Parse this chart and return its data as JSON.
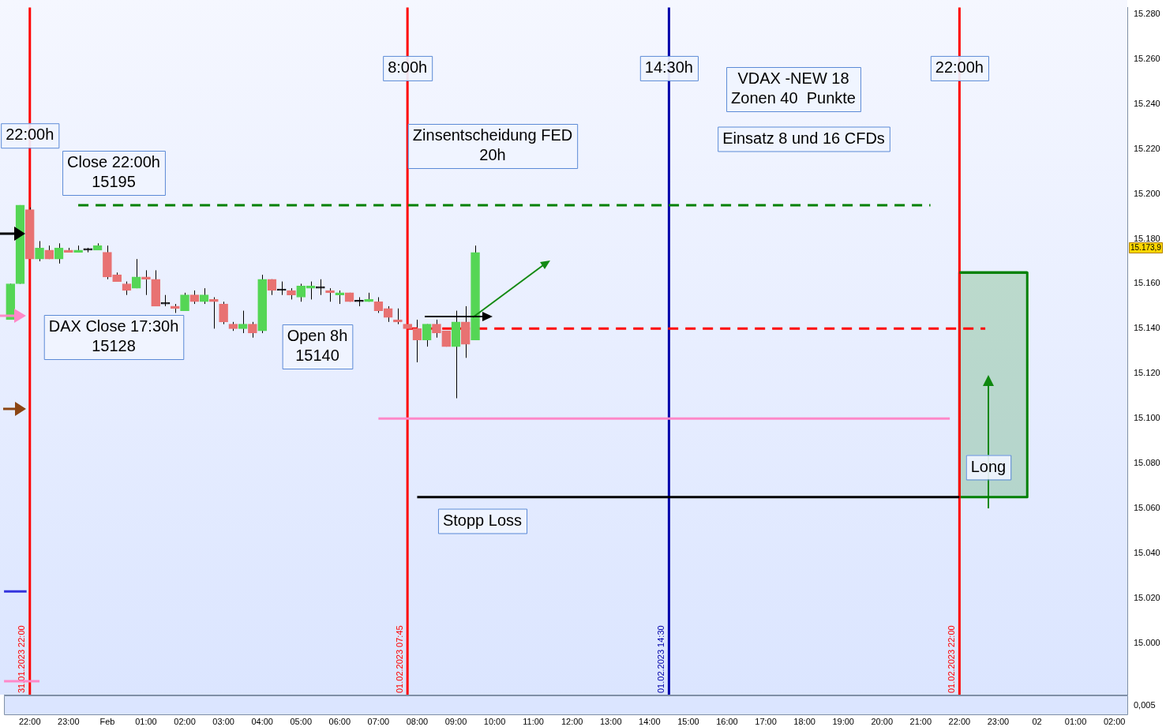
{
  "chart_data": {
    "type": "candlestick",
    "x": [
      "2023-01-31T21:30",
      "2023-01-31T21:45",
      "2023-01-31T22:00",
      "2023-01-31T22:15",
      "2023-01-31T22:30",
      "2023-01-31T22:45",
      "2023-01-31T23:00",
      "2023-01-31T23:15",
      "2023-01-31T23:30",
      "2023-01-31T23:45",
      "2023-02-01T00:00",
      "2023-02-01T00:15",
      "2023-02-01T00:30",
      "2023-02-01T00:45",
      "2023-02-01T01:00",
      "2023-02-01T01:15",
      "2023-02-01T01:30",
      "2023-02-01T01:45",
      "2023-02-01T02:00",
      "2023-02-01T02:15",
      "2023-02-01T02:30",
      "2023-02-01T02:45",
      "2023-02-01T03:00",
      "2023-02-01T03:15",
      "2023-02-01T03:30",
      "2023-02-01T03:45",
      "2023-02-01T04:00",
      "2023-02-01T04:15",
      "2023-02-01T04:30",
      "2023-02-01T04:45",
      "2023-02-01T05:00",
      "2023-02-01T05:15",
      "2023-02-01T05:30",
      "2023-02-01T05:45",
      "2023-02-01T06:00",
      "2023-02-01T06:15",
      "2023-02-01T06:30",
      "2023-02-01T06:45",
      "2023-02-01T07:00",
      "2023-02-01T07:15",
      "2023-02-01T07:30",
      "2023-02-01T07:45",
      "2023-02-01T08:00",
      "2023-02-01T08:15",
      "2023-02-01T08:30",
      "2023-02-01T08:45",
      "2023-02-01T09:00",
      "2023-02-01T09:15",
      "2023-02-01T09:30"
    ],
    "ohlc": [
      [
        15144,
        15160,
        15144,
        15160
      ],
      [
        15160,
        15195,
        15160,
        15195
      ],
      [
        15193,
        15194,
        15171,
        15171
      ],
      [
        15171,
        15179,
        15170,
        15176
      ],
      [
        15175,
        15177,
        15171,
        15171
      ],
      [
        15171,
        15178,
        15169,
        15176
      ],
      [
        15175,
        15176,
        15174,
        15174
      ],
      [
        15174,
        15177,
        15174,
        15175
      ],
      [
        15175,
        15176,
        15174,
        15175
      ],
      [
        15175,
        15178,
        15175,
        15177
      ],
      [
        15174,
        15177,
        15162,
        15163
      ],
      [
        15164,
        15165,
        15161,
        15161
      ],
      [
        15160,
        15161,
        15155,
        15157
      ],
      [
        15158,
        15171,
        15158,
        15163
      ],
      [
        15163,
        15166,
        15155,
        15162
      ],
      [
        15162,
        15166,
        15150,
        15150
      ],
      [
        15151,
        15155,
        15150,
        15151
      ],
      [
        15150,
        15151,
        15147,
        15149
      ],
      [
        15148,
        15156,
        15148,
        15155
      ],
      [
        15155,
        15157,
        15151,
        15152
      ],
      [
        15152,
        15158,
        15151,
        15155
      ],
      [
        15153,
        15154,
        15140,
        15152
      ],
      [
        15151,
        15152,
        15142,
        15143
      ],
      [
        15142,
        15143,
        15139,
        15140
      ],
      [
        15140,
        15148,
        15138,
        15142
      ],
      [
        15142,
        15143,
        15136,
        15138
      ],
      [
        15139,
        15164,
        15138,
        15162
      ],
      [
        15162,
        15162,
        15155,
        15157
      ],
      [
        15157,
        15161,
        15155,
        15157
      ],
      [
        15157,
        15158,
        15153,
        15155
      ],
      [
        15154,
        15160,
        15152,
        15159
      ],
      [
        15158,
        15161,
        15153,
        15159
      ],
      [
        15158,
        15162,
        15155,
        15158
      ],
      [
        15157,
        15158,
        15152,
        15156
      ],
      [
        15155,
        15157,
        15151,
        15156
      ],
      [
        15156,
        15156,
        15152,
        15152
      ],
      [
        15152,
        15154,
        15150,
        15152
      ],
      [
        15152,
        15156,
        15152,
        15153
      ],
      [
        15152,
        15154,
        15147,
        15148
      ],
      [
        15149,
        15150,
        15143,
        15145
      ],
      [
        15144,
        15149,
        15142,
        15143
      ],
      [
        15142,
        15142,
        15140,
        15140
      ],
      [
        15140,
        15144,
        15125,
        15135
      ],
      [
        15135,
        15142,
        15132,
        15142
      ],
      [
        15142,
        15144,
        15136,
        15138
      ],
      [
        15139,
        15139,
        15132,
        15132
      ],
      [
        15132,
        15148,
        15109,
        15143
      ],
      [
        15143,
        15150,
        15127,
        15133
      ],
      [
        15135,
        15177,
        15135,
        15173.9
      ]
    ],
    "colors": [
      "#55d655",
      "#55d655",
      "#e87272",
      "#55d655",
      "#e87272",
      "#55d655",
      "#e87272",
      "#55d655",
      "#000000",
      "#55d655",
      "#e87272",
      "#e87272",
      "#e87272",
      "#55d655",
      "#e87272",
      "#e87272",
      "#000000",
      "#e87272",
      "#55d655",
      "#e87272",
      "#55d655",
      "#e87272",
      "#e87272",
      "#e87272",
      "#55d655",
      "#e87272",
      "#55d655",
      "#e87272",
      "#000000",
      "#e87272",
      "#55d655",
      "#55d655",
      "#000000",
      "#e87272",
      "#55d655",
      "#e87272",
      "#000000",
      "#55d655",
      "#e87272",
      "#e87272",
      "#e87272",
      "#e87272",
      "#e87272",
      "#55d655",
      "#e87272",
      "#e87272",
      "#55d655",
      "#e87272",
      "#55d655"
    ],
    "series": [
      {
        "type": "line",
        "color": "#008000",
        "line_style": "dashed",
        "x": [
          "2023-01-31T23:15",
          "2023-02-01T21:15"
        ],
        "values": [
          15195,
          15195
        ]
      },
      {
        "type": "line",
        "color": "#ff0000",
        "line_style": "dashed",
        "x": [
          "2023-02-01T07:45",
          "2023-02-01T22:40"
        ],
        "values": [
          15140,
          15140
        ]
      },
      {
        "type": "line",
        "color": "#ff88c8",
        "line_style": "solid",
        "x": [
          "2023-02-01T07:00",
          "2023-02-01T21:45"
        ],
        "values": [
          15100,
          15100
        ]
      },
      {
        "type": "line",
        "color": "#000000",
        "line_style": "solid",
        "x": [
          "2023-02-01T08:00",
          "2023-02-01T22:00"
        ],
        "values": [
          15065,
          15065
        ]
      },
      {
        "type": "line",
        "color": "#3333dd",
        "line_style": "solid",
        "x": [
          "2023-01-31T21:20",
          "2023-01-31T21:55"
        ],
        "values": [
          15023,
          15023
        ]
      },
      {
        "type": "line",
        "color": "#ff88c8",
        "line_style": "solid",
        "x": [
          "2023-01-31T21:20",
          "2023-01-31T22:15"
        ],
        "values": [
          14983,
          14983
        ]
      },
      {
        "type": "line",
        "color": "#008000",
        "line_style": "solid",
        "x": [
          "2023-02-01T22:00",
          "2023-02-01T23:45"
        ],
        "values": [
          15165,
          15165
        ],
        "lower": [
          15065,
          15065
        ],
        "upper": [
          15165,
          15165
        ]
      }
    ],
    "xlim": [
      "2023-01-31T21:20",
      "2023-02-02T02:20"
    ],
    "ylim": [
      14977,
      15283
    ],
    "xticks": [
      {
        "value": "2023-01-31T22:00",
        "label": "22:00"
      },
      {
        "value": "2023-01-31T23:00",
        "label": "23:00"
      },
      {
        "value": "2023-02-01T00:00",
        "label": "Feb"
      },
      {
        "value": "2023-02-01T01:00",
        "label": "01:00"
      },
      {
        "value": "2023-02-01T02:00",
        "label": "02:00"
      },
      {
        "value": "2023-02-01T03:00",
        "label": "03:00"
      },
      {
        "value": "2023-02-01T04:00",
        "label": "04:00"
      },
      {
        "value": "2023-02-01T05:00",
        "label": "05:00"
      },
      {
        "value": "2023-02-01T06:00",
        "label": "06:00"
      },
      {
        "value": "2023-02-01T07:00",
        "label": "07:00"
      },
      {
        "value": "2023-02-01T08:00",
        "label": "08:00"
      },
      {
        "value": "2023-02-01T09:00",
        "label": "09:00"
      },
      {
        "value": "2023-02-01T10:00",
        "label": "10:00"
      },
      {
        "value": "2023-02-01T11:00",
        "label": "11:00"
      },
      {
        "value": "2023-02-01T12:00",
        "label": "12:00"
      },
      {
        "value": "2023-02-01T13:00",
        "label": "13:00"
      },
      {
        "value": "2023-02-01T14:00",
        "label": "14:00"
      },
      {
        "value": "2023-02-01T15:00",
        "label": "15:00"
      },
      {
        "value": "2023-02-01T16:00",
        "label": "16:00"
      },
      {
        "value": "2023-02-01T17:00",
        "label": "17:00"
      },
      {
        "value": "2023-02-01T18:00",
        "label": "18:00"
      },
      {
        "value": "2023-02-01T19:00",
        "label": "19:00"
      },
      {
        "value": "2023-02-01T20:00",
        "label": "20:00"
      },
      {
        "value": "2023-02-01T21:00",
        "label": "21:00"
      },
      {
        "value": "2023-02-01T22:00",
        "label": "22:00"
      },
      {
        "value": "2023-02-01T23:00",
        "label": "23:00"
      },
      {
        "value": "2023-02-02T00:00",
        "label": "02"
      },
      {
        "value": "2023-02-02T01:00",
        "label": "01:00"
      },
      {
        "value": "2023-02-02T02:00",
        "label": "02:00"
      }
    ],
    "yticks": [
      {
        "value": 15000,
        "label": "15.000"
      },
      {
        "value": 15020,
        "label": "15.020"
      },
      {
        "value": 15040,
        "label": "15.040"
      },
      {
        "value": 15060,
        "label": "15.060"
      },
      {
        "value": 15080,
        "label": "15.080"
      },
      {
        "value": 15100,
        "label": "15.100"
      },
      {
        "value": 15120,
        "label": "15.120"
      },
      {
        "value": 15140,
        "label": "15.140"
      },
      {
        "value": 15160,
        "label": "15.160"
      },
      {
        "value": 15180,
        "label": "15.180"
      },
      {
        "value": 15200,
        "label": "15.200"
      },
      {
        "value": 15220,
        "label": "15.220"
      },
      {
        "value": 15240,
        "label": "15.240"
      },
      {
        "value": 15260,
        "label": "15.260"
      },
      {
        "value": 15280,
        "label": "15.280"
      }
    ],
    "ref_lines": [
      {
        "axis": "x",
        "value": "2023-01-31T22:00",
        "label": "31.01.2023 22:00",
        "color": "#ff0000"
      },
      {
        "axis": "x",
        "value": "2023-02-01T07:45",
        "label": "01.02.2023 07:45",
        "color": "#ff0000"
      },
      {
        "axis": "x",
        "value": "2023-02-01T14:30",
        "label": "01.02.2023 14:30",
        "color": "#0000aa"
      },
      {
        "axis": "x",
        "value": "2023-02-01T22:00",
        "label": "01.02.2023 22:00",
        "color": "#ff0000"
      }
    ],
    "annotations": [
      {
        "text": "22:00h",
        "x": "2023-01-31T22:00",
        "y": 15226
      },
      {
        "text": "8:00h",
        "x": "2023-02-01T07:45",
        "y": 15256
      },
      {
        "text": "14:30h",
        "x": "2023-02-01T14:30",
        "y": 15256
      },
      {
        "text": "22:00h",
        "x": "2023-02-01T22:00",
        "y": 15256
      },
      "Close 22:00h\n15195",
      "DAX Close 17:30h\n15128",
      "Open 8h\n15140",
      "Zinsentscheidung FED\n20h",
      "VDAX -NEW 18\nZonen 40  Punkte",
      "Einsatz 8 und 16 CFDs",
      "Stopp Loss",
      "Long",
      "15.173,9",
      "0,005"
    ],
    "grid": false,
    "legend": false,
    "marker": "none"
  }
}
